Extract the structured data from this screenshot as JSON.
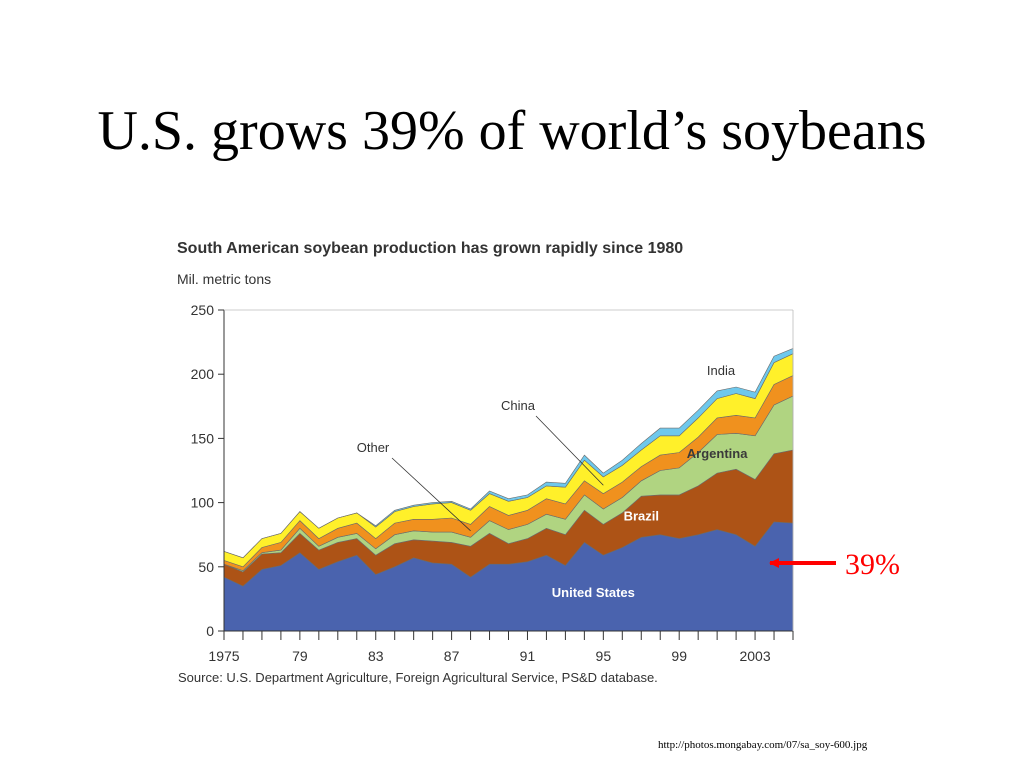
{
  "slide": {
    "title": "U.S. grows 39% of world’s soybeans",
    "callout": "39%",
    "source_url": "http://photos.mongabay.com/07/sa_soy-600.jpg"
  },
  "colors": {
    "united_states": "#4a63ae",
    "brazil": "#ad5316",
    "argentina": "#b0d481",
    "other": "#f0911e",
    "china": "#fff02a",
    "india": "#6ec8ec",
    "callout": "#ff0000"
  },
  "chart_data": {
    "type": "area",
    "stacked": true,
    "title": "South American soybean production has grown rapidly since 1980",
    "ylabel": "Mil. metric tons",
    "source": "Source: U.S. Department Agriculture, Foreign Agricultural Service, PS&D database.",
    "ylim": [
      0,
      250
    ],
    "xlim": [
      1975,
      2005
    ],
    "yticks": [
      0,
      50,
      100,
      150,
      200,
      250
    ],
    "xtick_labels": [
      {
        "x": 1975,
        "label": "1975"
      },
      {
        "x": 1979,
        "label": "79"
      },
      {
        "x": 1983,
        "label": "83"
      },
      {
        "x": 1987,
        "label": "87"
      },
      {
        "x": 1991,
        "label": "91"
      },
      {
        "x": 1995,
        "label": "95"
      },
      {
        "x": 1999,
        "label": "99"
      },
      {
        "x": 2003,
        "label": "2003"
      }
    ],
    "x": [
      1975,
      1976,
      1977,
      1978,
      1979,
      1980,
      1981,
      1982,
      1983,
      1984,
      1985,
      1986,
      1987,
      1988,
      1989,
      1990,
      1991,
      1992,
      1993,
      1994,
      1995,
      1996,
      1997,
      1998,
      1999,
      2000,
      2001,
      2002,
      2003,
      2004,
      2005
    ],
    "series": [
      {
        "key": "united_states",
        "name": "United States",
        "values": [
          42,
          35,
          48,
          51,
          61,
          48,
          54,
          59,
          44,
          50,
          57,
          53,
          52,
          42,
          52,
          52,
          54,
          59,
          51,
          69,
          59,
          65,
          73,
          75,
          72,
          75,
          79,
          75,
          66,
          85,
          84
        ]
      },
      {
        "key": "brazil",
        "name": "Brazil",
        "values": [
          10,
          11,
          12,
          10,
          15,
          15,
          15,
          13,
          15,
          18,
          14,
          17,
          17,
          24,
          24,
          16,
          18,
          21,
          24,
          25,
          24,
          27,
          32,
          31,
          34,
          38,
          44,
          51,
          52,
          53,
          57
        ]
      },
      {
        "key": "argentina",
        "name": "Argentina",
        "values": [
          0,
          1,
          1,
          2,
          4,
          3,
          4,
          4,
          5,
          7,
          7,
          7,
          8,
          7,
          10,
          11,
          11,
          11,
          12,
          12,
          12,
          12,
          12,
          19,
          21,
          26,
          30,
          28,
          34,
          38,
          42
        ]
      },
      {
        "key": "other",
        "name": "Other",
        "values": [
          3,
          3,
          4,
          6,
          6,
          6,
          7,
          8,
          8,
          9,
          9,
          10,
          11,
          10,
          11,
          11,
          11,
          12,
          12,
          11,
          12,
          12,
          11,
          12,
          12,
          12,
          13,
          14,
          14,
          16,
          16
        ]
      },
      {
        "key": "china",
        "name": "China",
        "values": [
          7,
          7,
          7,
          7,
          7,
          8,
          8,
          8,
          9,
          9,
          10,
          12,
          12,
          11,
          10,
          11,
          10,
          10,
          13,
          16,
          13,
          13,
          13,
          15,
          13,
          15,
          15,
          17,
          15,
          17,
          17
        ]
      },
      {
        "key": "india",
        "name": "India",
        "values": [
          0,
          0,
          0,
          0,
          0,
          0,
          0,
          0,
          1,
          1,
          1,
          1,
          1,
          1,
          2,
          2,
          2,
          3,
          3,
          4,
          3,
          4,
          5,
          6,
          6,
          6,
          6,
          5,
          5,
          5,
          4
        ]
      }
    ],
    "annotations": [
      {
        "key": "china",
        "label": "China"
      },
      {
        "key": "other",
        "label": "Other"
      },
      {
        "key": "india",
        "label": "India"
      }
    ]
  }
}
